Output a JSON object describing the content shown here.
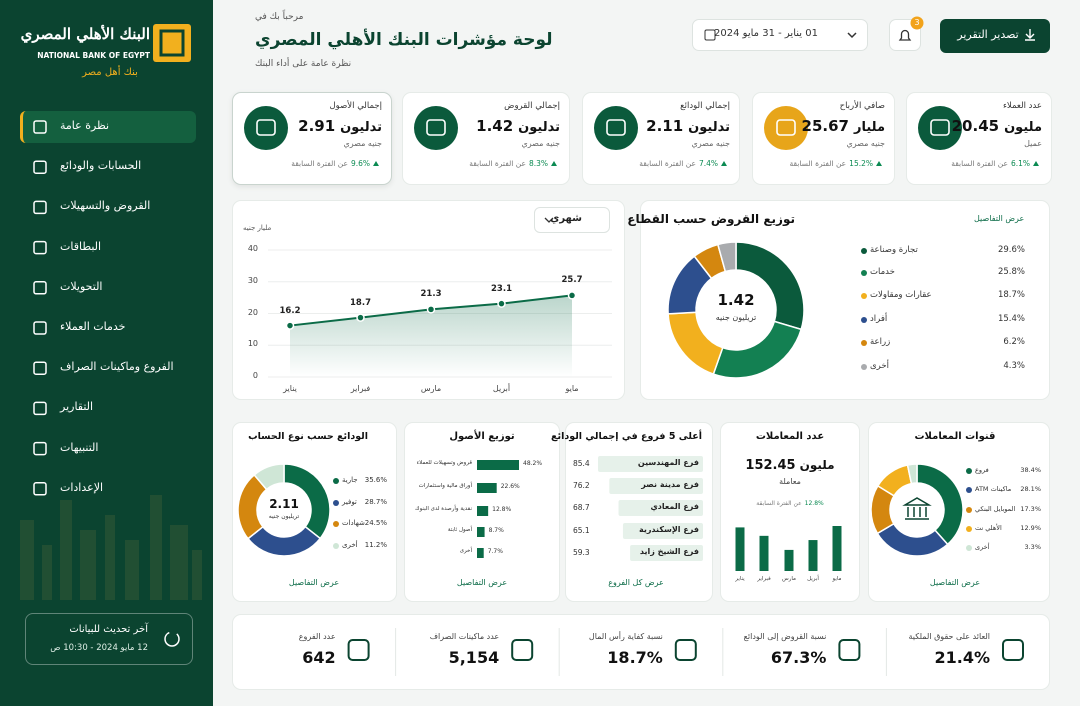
{
  "sidebar": {
    "logo_ar": "البنك الأهلي المصري",
    "logo_en": "NATIONAL BANK OF EGYPT",
    "tagline": "بنك أهل مصر",
    "menu": [
      "نظرة عامة",
      "الحسابات والودائع",
      "القروض والتسهيلات",
      "البطاقات",
      "التحويلات",
      "خدمات العملاء",
      "الفروع وماكينات الصراف",
      "التقارير",
      "التنبيهات",
      "الإعدادات"
    ],
    "update_label": "آخر تحديث للبيانات",
    "update_time": "12 مايو 2024 - 10:30 ص"
  },
  "header": {
    "greeting": "مرحباً بك في",
    "title": "لوحة مؤشرات البنك الأهلي المصري",
    "subtitle": "نظرة عامة على أداء البنك",
    "date_range": "01 يناير - 31 مايو 2024",
    "notifications": 3,
    "export": "تصدير التقرير"
  },
  "kpis": [
    {
      "label": "عدد العملاء",
      "value": 20.45,
      "unit": "مليون",
      "sub": "عميل",
      "change": "6.1%",
      "compare": "عن الفترة السابقة"
    },
    {
      "label": "صافي الأرباح",
      "value": 25.67,
      "unit": "مليار",
      "sub": "جنيه مصري",
      "change": "15.2%",
      "compare": "عن الفترة السابقة"
    },
    {
      "label": "إجمالي الودائع",
      "value": 2.11,
      "unit": "تدليون",
      "sub": "جنيه مصري",
      "change": "7.4%",
      "compare": "عن الفترة السابقة"
    },
    {
      "label": "إجمالي القروض",
      "value": 1.42,
      "unit": "تدليون",
      "sub": "جنيه مصري",
      "change": "8.3%",
      "compare": "عن الفترة السابقة"
    },
    {
      "label": "إجمالي الأصول",
      "value": 2.91,
      "unit": "تدليون",
      "sub": "جنيه مصري",
      "change": "9.6%",
      "compare": "عن الفترة السابقة"
    }
  ],
  "charts": {
    "trend": {
      "type": "line",
      "unit_label": "مليار جنيه",
      "period": "شهري",
      "categories": [
        "يناير",
        "فبراير",
        "مارس",
        "أبريل",
        "مايو"
      ],
      "values": [
        16.2,
        18.7,
        21.3,
        23.1,
        25.7
      ],
      "ylim": [
        0,
        40
      ],
      "yticks": [
        0,
        10,
        20,
        30,
        40
      ],
      "color": "#0b6b47",
      "grid": true
    },
    "sectors": {
      "type": "donut",
      "title": "توزيع القروض حسب القطاع",
      "link": "عرض التفاصيل",
      "center_value": 1.42,
      "center_unit": "تريليون جنيه",
      "categories": [
        "تجارة وصناعة",
        "خدمات",
        "عقارات ومقاولات",
        "أفراد",
        "زراعة",
        "أخرى"
      ],
      "values": [
        29.6,
        25.8,
        18.7,
        15.4,
        6.2,
        4.3
      ],
      "value_labels": [
        "29.6%",
        "25.8%",
        "18.7%",
        "15.4%",
        "6.2%",
        "4.3%"
      ],
      "colors": [
        "#0b5a3c",
        "#138052",
        "#f2b01e",
        "#2d4f8e",
        "#d4870f",
        "#a9abae"
      ]
    },
    "deposits": {
      "type": "donut",
      "title": "الودائع حسب نوع الحساب",
      "link": "عرض التفاصيل",
      "center_value": 2.11,
      "center_unit": "تريليون جنيه",
      "categories": [
        "جارية",
        "توفير",
        "شهادات",
        "أخرى"
      ],
      "values": [
        35.6,
        28.7,
        24.5,
        11.2
      ],
      "value_labels": [
        "35.6%",
        "28.7%",
        "24.5%",
        "11.2%"
      ],
      "colors": [
        "#0b6b47",
        "#2d4f8e",
        "#d4870f",
        "#cfe6d6"
      ]
    },
    "assets": {
      "type": "hbar",
      "title": "توزيع الأصول",
      "link": "عرض التفاصيل",
      "categories": [
        "قروض وتسهيلات للعملاء",
        "أوراق مالية واستثمارات",
        "نقدية وأرصدة لدى البنوك",
        "أصول ثابتة",
        "أخرى"
      ],
      "values": [
        48.2,
        22.6,
        12.8,
        8.7,
        7.7
      ],
      "value_labels": [
        "48.2%",
        "22.6%",
        "12.8%",
        "8.7%",
        "7.7%"
      ],
      "color": "#0b6b47"
    },
    "branches": {
      "type": "hbar",
      "title": "أعلى 5 فروع في إجمالي الودائع",
      "link": "عرض كل الفروع",
      "categories": [
        "فرع المهندسين",
        "فرع مدينة نصر",
        "فرع المعادي",
        "فرع الإسكندرية",
        "فرع الشيخ زايد"
      ],
      "values": [
        85.4,
        76.2,
        68.7,
        65.1,
        59.3
      ],
      "color": "#e6f1ea"
    },
    "transactions": {
      "type": "bar",
      "title": "عدد المعاملات",
      "total": 152.45,
      "total_unit": "مليون",
      "total_sub": "معاملة",
      "change": "12.8%",
      "compare": "عن الفترة السابقة",
      "categories": [
        "يناير",
        "فبراير",
        "مارس",
        "أبريل",
        "مايو"
      ],
      "values": [
        31,
        25,
        15,
        22,
        32
      ],
      "color": "#0b6b47"
    },
    "channels": {
      "type": "donut",
      "title": "قنوات المعاملات",
      "link": "عرض التفاصيل",
      "categories": [
        "فروع",
        "ماكينات ATM",
        "الموبايل البنكي",
        "الأهلي نت",
        "أخرى"
      ],
      "values": [
        38.4,
        28.1,
        17.3,
        12.9,
        3.3
      ],
      "value_labels": [
        "38.4%",
        "28.1%",
        "17.3%",
        "12.9%",
        "3.3%"
      ],
      "colors": [
        "#0b6b47",
        "#2d4f8e",
        "#d4870f",
        "#f2b01e",
        "#cfe6d6"
      ]
    }
  },
  "stats": [
    {
      "label": "العائد على حقوق الملكية",
      "value": "21.4%"
    },
    {
      "label": "نسبة القروض إلى الودائع",
      "value": "67.3%"
    },
    {
      "label": "نسبة كفاية رأس المال",
      "value": "18.7%"
    },
    {
      "label": "عدد ماكينات الصراف",
      "value": "5,154"
    },
    {
      "label": "عدد الفروع",
      "value": 642
    }
  ]
}
